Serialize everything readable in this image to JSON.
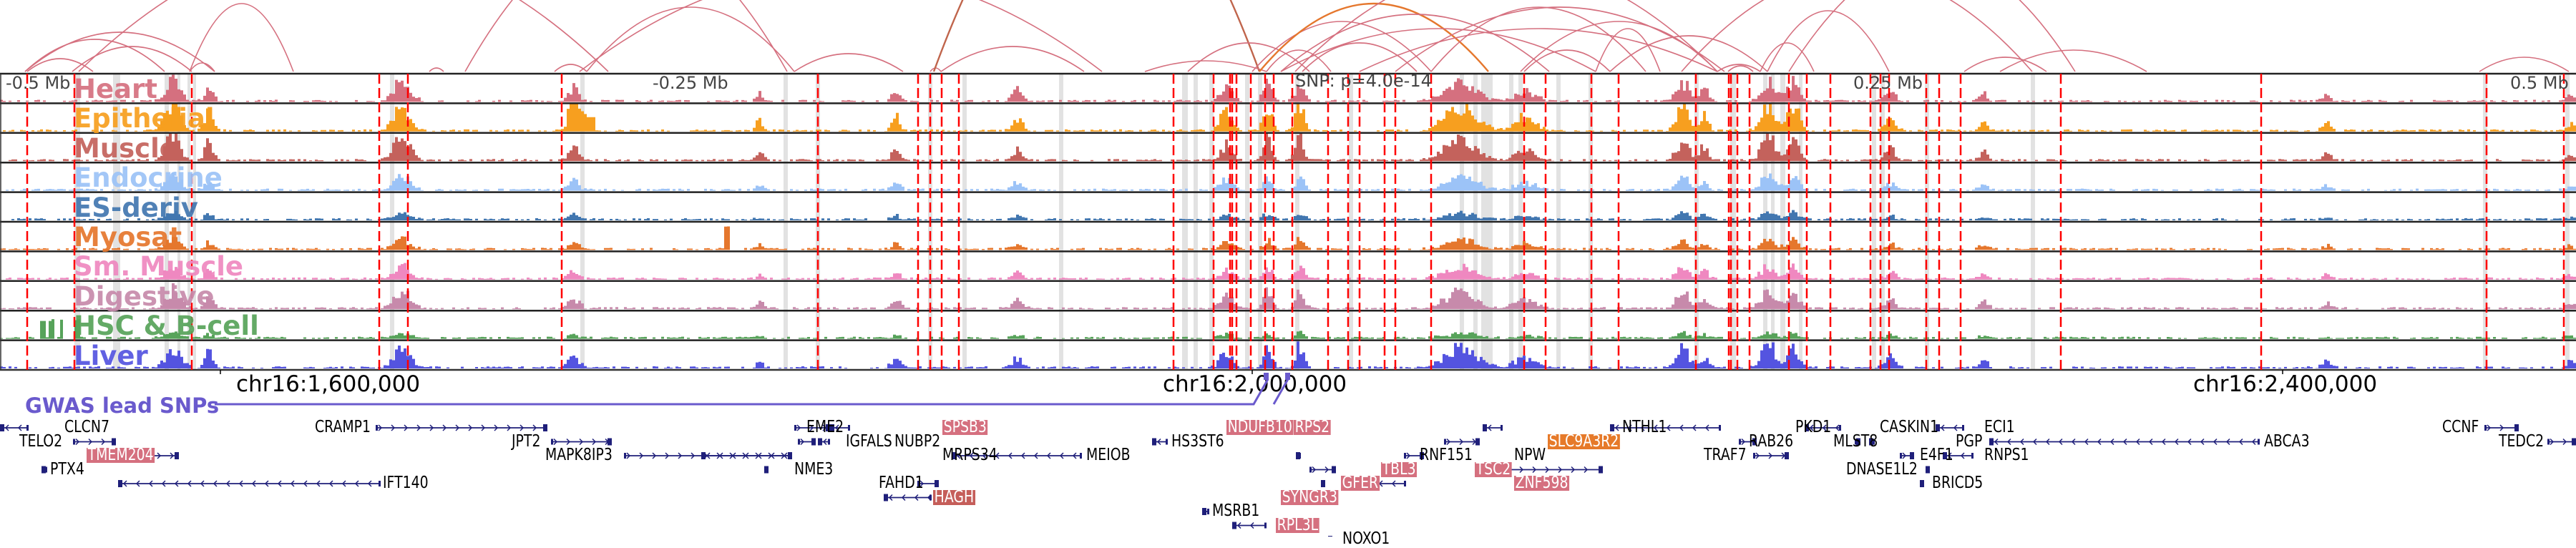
{
  "view": {
    "region_ticks": [
      {
        "label": "chr16:1,600,000",
        "position": 1600000
      },
      {
        "label": "chr16:2,000,000",
        "position": 2000000
      },
      {
        "label": "chr16:2,400,000",
        "position": 2400000
      }
    ],
    "relative_axis": [
      {
        "label": "-0.5 Mb"
      },
      {
        "label": "-0.25 Mb"
      },
      {
        "label": "SNP: p=4.0e-14"
      },
      {
        "label": "0.25 Mb"
      },
      {
        "label": "0.5 Mb"
      }
    ],
    "gwas_label": "GWAS lead SNPs"
  },
  "tracks": [
    {
      "name": "Heart",
      "color": "#d5707f"
    },
    {
      "name": "Epithelial",
      "color": "#f79f1f"
    },
    {
      "name": "Muscle",
      "color": "#c4625c"
    },
    {
      "name": "Endocrine",
      "color": "#9cc3f7"
    },
    {
      "name": "ES-deriv",
      "color": "#4277b0"
    },
    {
      "name": "Myosat",
      "color": "#e5772d"
    },
    {
      "name": "Sm. Muscle",
      "color": "#ef88c0"
    },
    {
      "name": "Digestive",
      "color": "#c78aab"
    },
    {
      "name": "HSC & B-cell",
      "color": "#57a35a"
    },
    {
      "name": "Liver",
      "color": "#5454e0"
    }
  ],
  "colors": {
    "snp_line": "#ff0000",
    "highlight_band": "#e2e2e2",
    "arc_default": "#d5707f",
    "arc_orange": "#e5772d",
    "arc_brown": "#c0654c",
    "gene_model": "#1f1f7a",
    "gwas": "#6a5acd"
  },
  "genes": [
    {
      "name": "CLCN7",
      "strand": "-",
      "hl": ""
    },
    {
      "name": "TELO2",
      "strand": "+",
      "hl": ""
    },
    {
      "name": "TMEM204",
      "strand": "+",
      "hl": "pink"
    },
    {
      "name": "PTX4",
      "strand": "-",
      "hl": ""
    },
    {
      "name": "IFT140",
      "strand": "-",
      "hl": ""
    },
    {
      "name": "CRAMP1",
      "strand": "+",
      "hl": ""
    },
    {
      "name": "JPT2",
      "strand": "+",
      "hl": ""
    },
    {
      "name": "MAPK8IP3",
      "strand": "+",
      "hl": ""
    },
    {
      "name": "EME2",
      "strand": "+",
      "hl": ""
    },
    {
      "name": "SPSB3",
      "strand": "-",
      "hl": "pink"
    },
    {
      "name": "NUBP2",
      "strand": "+",
      "hl": ""
    },
    {
      "name": "IGFALS",
      "strand": "-",
      "hl": ""
    },
    {
      "name": "MRPS34",
      "strand": "-",
      "hl": ""
    },
    {
      "name": "NME3",
      "strand": "-",
      "hl": ""
    },
    {
      "name": "MEIOB",
      "strand": "-",
      "hl": ""
    },
    {
      "name": "FAHD1",
      "strand": "+",
      "hl": ""
    },
    {
      "name": "HAGH",
      "strand": "-",
      "hl": "red"
    },
    {
      "name": "NDUFB10",
      "strand": "-",
      "hl": "pink"
    },
    {
      "name": "RPS2",
      "strand": "-",
      "hl": "pink"
    },
    {
      "name": "HS3ST6",
      "strand": "-",
      "hl": ""
    },
    {
      "name": "RNF151",
      "strand": "+",
      "hl": ""
    },
    {
      "name": "TBL3",
      "strand": "+",
      "hl": "pink"
    },
    {
      "name": "GFER",
      "strand": "+",
      "hl": "pink"
    },
    {
      "name": "SYNGR3",
      "strand": "+",
      "hl": "pink"
    },
    {
      "name": "MSRB1",
      "strand": "-",
      "hl": ""
    },
    {
      "name": "RPL3L",
      "strand": "-",
      "hl": "pink"
    },
    {
      "name": "NOXO1",
      "strand": "-",
      "hl": ""
    },
    {
      "name": "SLC9A3R2",
      "strand": "+",
      "hl": "orange"
    },
    {
      "name": "NPW",
      "strand": "+",
      "hl": ""
    },
    {
      "name": "TSC2",
      "strand": "+",
      "hl": "pink"
    },
    {
      "name": "ZNF598",
      "strand": "-",
      "hl": "pink"
    },
    {
      "name": "NTHL1",
      "strand": "-",
      "hl": ""
    },
    {
      "name": "PKD1",
      "strand": "-",
      "hl": ""
    },
    {
      "name": "RAB26",
      "strand": "+",
      "hl": ""
    },
    {
      "name": "TRAF7",
      "strand": "+",
      "hl": ""
    },
    {
      "name": "CASKIN1",
      "strand": "-",
      "hl": ""
    },
    {
      "name": "MLST8",
      "strand": "+",
      "hl": ""
    },
    {
      "name": "PGP",
      "strand": "-",
      "hl": ""
    },
    {
      "name": "E4F1",
      "strand": "+",
      "hl": ""
    },
    {
      "name": "DNASE1L2",
      "strand": "+",
      "hl": ""
    },
    {
      "name": "BRICD5",
      "strand": "-",
      "hl": ""
    },
    {
      "name": "ECI1",
      "strand": "-",
      "hl": ""
    },
    {
      "name": "RNPS1",
      "strand": "-",
      "hl": ""
    },
    {
      "name": "ABCA3",
      "strand": "-",
      "hl": ""
    },
    {
      "name": "CCNF",
      "strand": "+",
      "hl": ""
    },
    {
      "name": "TEDC2",
      "strand": "+",
      "hl": ""
    }
  ]
}
